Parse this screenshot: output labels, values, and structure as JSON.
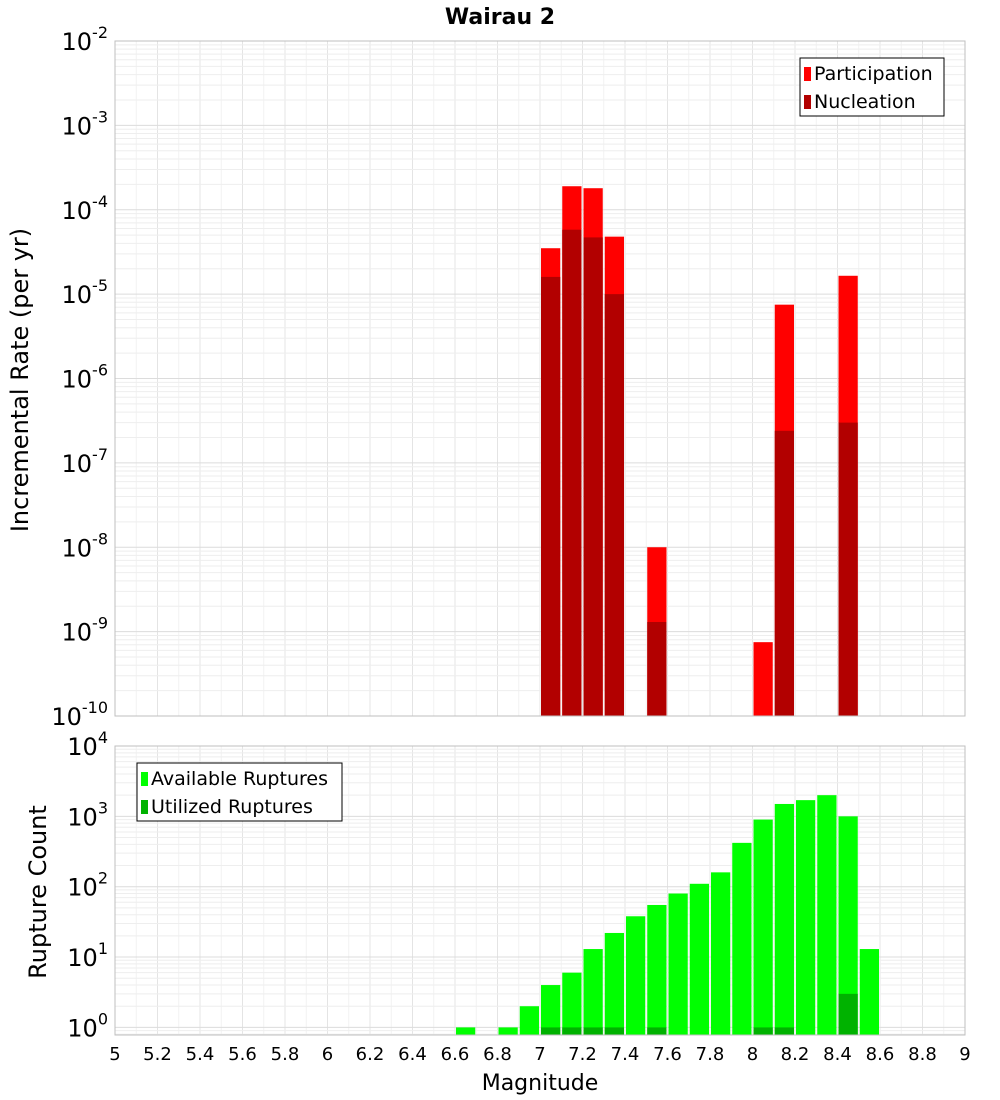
{
  "chart_data": [
    {
      "type": "bar",
      "title": "Wairau 2",
      "ylabel": "Incremental Rate (per yr)",
      "xlabel": "",
      "xlim": [
        5,
        9
      ],
      "ylim": [
        1e-10,
        0.01
      ],
      "yscale": "log",
      "grid": true,
      "legend": "top-right",
      "y_ticks": [
        {
          "base": "10",
          "exp": "-10"
        },
        {
          "base": "10",
          "exp": "-9"
        },
        {
          "base": "10",
          "exp": "-8"
        },
        {
          "base": "10",
          "exp": "-7"
        },
        {
          "base": "10",
          "exp": "-6"
        },
        {
          "base": "10",
          "exp": "-5"
        },
        {
          "base": "10",
          "exp": "-4"
        },
        {
          "base": "10",
          "exp": "-3"
        },
        {
          "base": "10",
          "exp": "-2"
        }
      ],
      "series": [
        {
          "name": "Participation",
          "color": "#ff0000",
          "points": [
            {
              "x": 7.05,
              "y": 3.5e-05
            },
            {
              "x": 7.15,
              "y": 0.00019
            },
            {
              "x": 7.25,
              "y": 0.00018
            },
            {
              "x": 7.35,
              "y": 4.8e-05
            },
            {
              "x": 7.55,
              "y": 1e-08
            },
            {
              "x": 8.05,
              "y": 7.5e-10
            },
            {
              "x": 8.15,
              "y": 7.5e-06
            },
            {
              "x": 8.45,
              "y": 1.65e-05
            }
          ]
        },
        {
          "name": "Nucleation",
          "color": "#b20000",
          "points": [
            {
              "x": 7.05,
              "y": 1.6e-05
            },
            {
              "x": 7.15,
              "y": 5.8e-05
            },
            {
              "x": 7.25,
              "y": 4.7e-05
            },
            {
              "x": 7.35,
              "y": 1e-05
            },
            {
              "x": 7.55,
              "y": 1.3e-09
            },
            {
              "x": 8.15,
              "y": 2.4e-07
            },
            {
              "x": 8.45,
              "y": 3e-07
            }
          ]
        }
      ]
    },
    {
      "type": "bar",
      "title": "",
      "ylabel": "Rupture Count",
      "xlabel": "Magnitude",
      "xlim": [
        5,
        9
      ],
      "ylim": [
        0.78,
        10000
      ],
      "yscale": "log",
      "grid": true,
      "legend": "top-left",
      "x_ticks": [
        "5",
        "5.2",
        "5.4",
        "5.6",
        "5.8",
        "6",
        "6.2",
        "6.4",
        "6.6",
        "6.8",
        "7",
        "7.2",
        "7.4",
        "7.6",
        "7.8",
        "8",
        "8.2",
        "8.4",
        "8.6",
        "8.8",
        "9"
      ],
      "y_ticks": [
        {
          "base": "10",
          "exp": "0"
        },
        {
          "base": "10",
          "exp": "1"
        },
        {
          "base": "10",
          "exp": "2"
        },
        {
          "base": "10",
          "exp": "3"
        },
        {
          "base": "10",
          "exp": "4"
        }
      ],
      "series": [
        {
          "name": "Available Ruptures",
          "color": "#00ff00",
          "points": [
            {
              "x": 6.65,
              "y": 1
            },
            {
              "x": 6.85,
              "y": 1
            },
            {
              "x": 6.95,
              "y": 2
            },
            {
              "x": 7.05,
              "y": 4
            },
            {
              "x": 7.15,
              "y": 6
            },
            {
              "x": 7.25,
              "y": 13
            },
            {
              "x": 7.35,
              "y": 22
            },
            {
              "x": 7.45,
              "y": 38
            },
            {
              "x": 7.55,
              "y": 55
            },
            {
              "x": 7.65,
              "y": 80
            },
            {
              "x": 7.75,
              "y": 110
            },
            {
              "x": 7.85,
              "y": 160
            },
            {
              "x": 7.95,
              "y": 420
            },
            {
              "x": 8.05,
              "y": 900
            },
            {
              "x": 8.15,
              "y": 1500
            },
            {
              "x": 8.25,
              "y": 1700
            },
            {
              "x": 8.35,
              "y": 2000
            },
            {
              "x": 8.45,
              "y": 1000
            },
            {
              "x": 8.55,
              "y": 13
            }
          ]
        },
        {
          "name": "Utilized Ruptures",
          "color": "#00b200",
          "points": [
            {
              "x": 7.05,
              "y": 1
            },
            {
              "x": 7.15,
              "y": 1
            },
            {
              "x": 7.25,
              "y": 1
            },
            {
              "x": 7.35,
              "y": 1
            },
            {
              "x": 7.55,
              "y": 1
            },
            {
              "x": 8.05,
              "y": 1
            },
            {
              "x": 8.15,
              "y": 1
            },
            {
              "x": 8.45,
              "y": 3
            }
          ]
        }
      ]
    }
  ]
}
